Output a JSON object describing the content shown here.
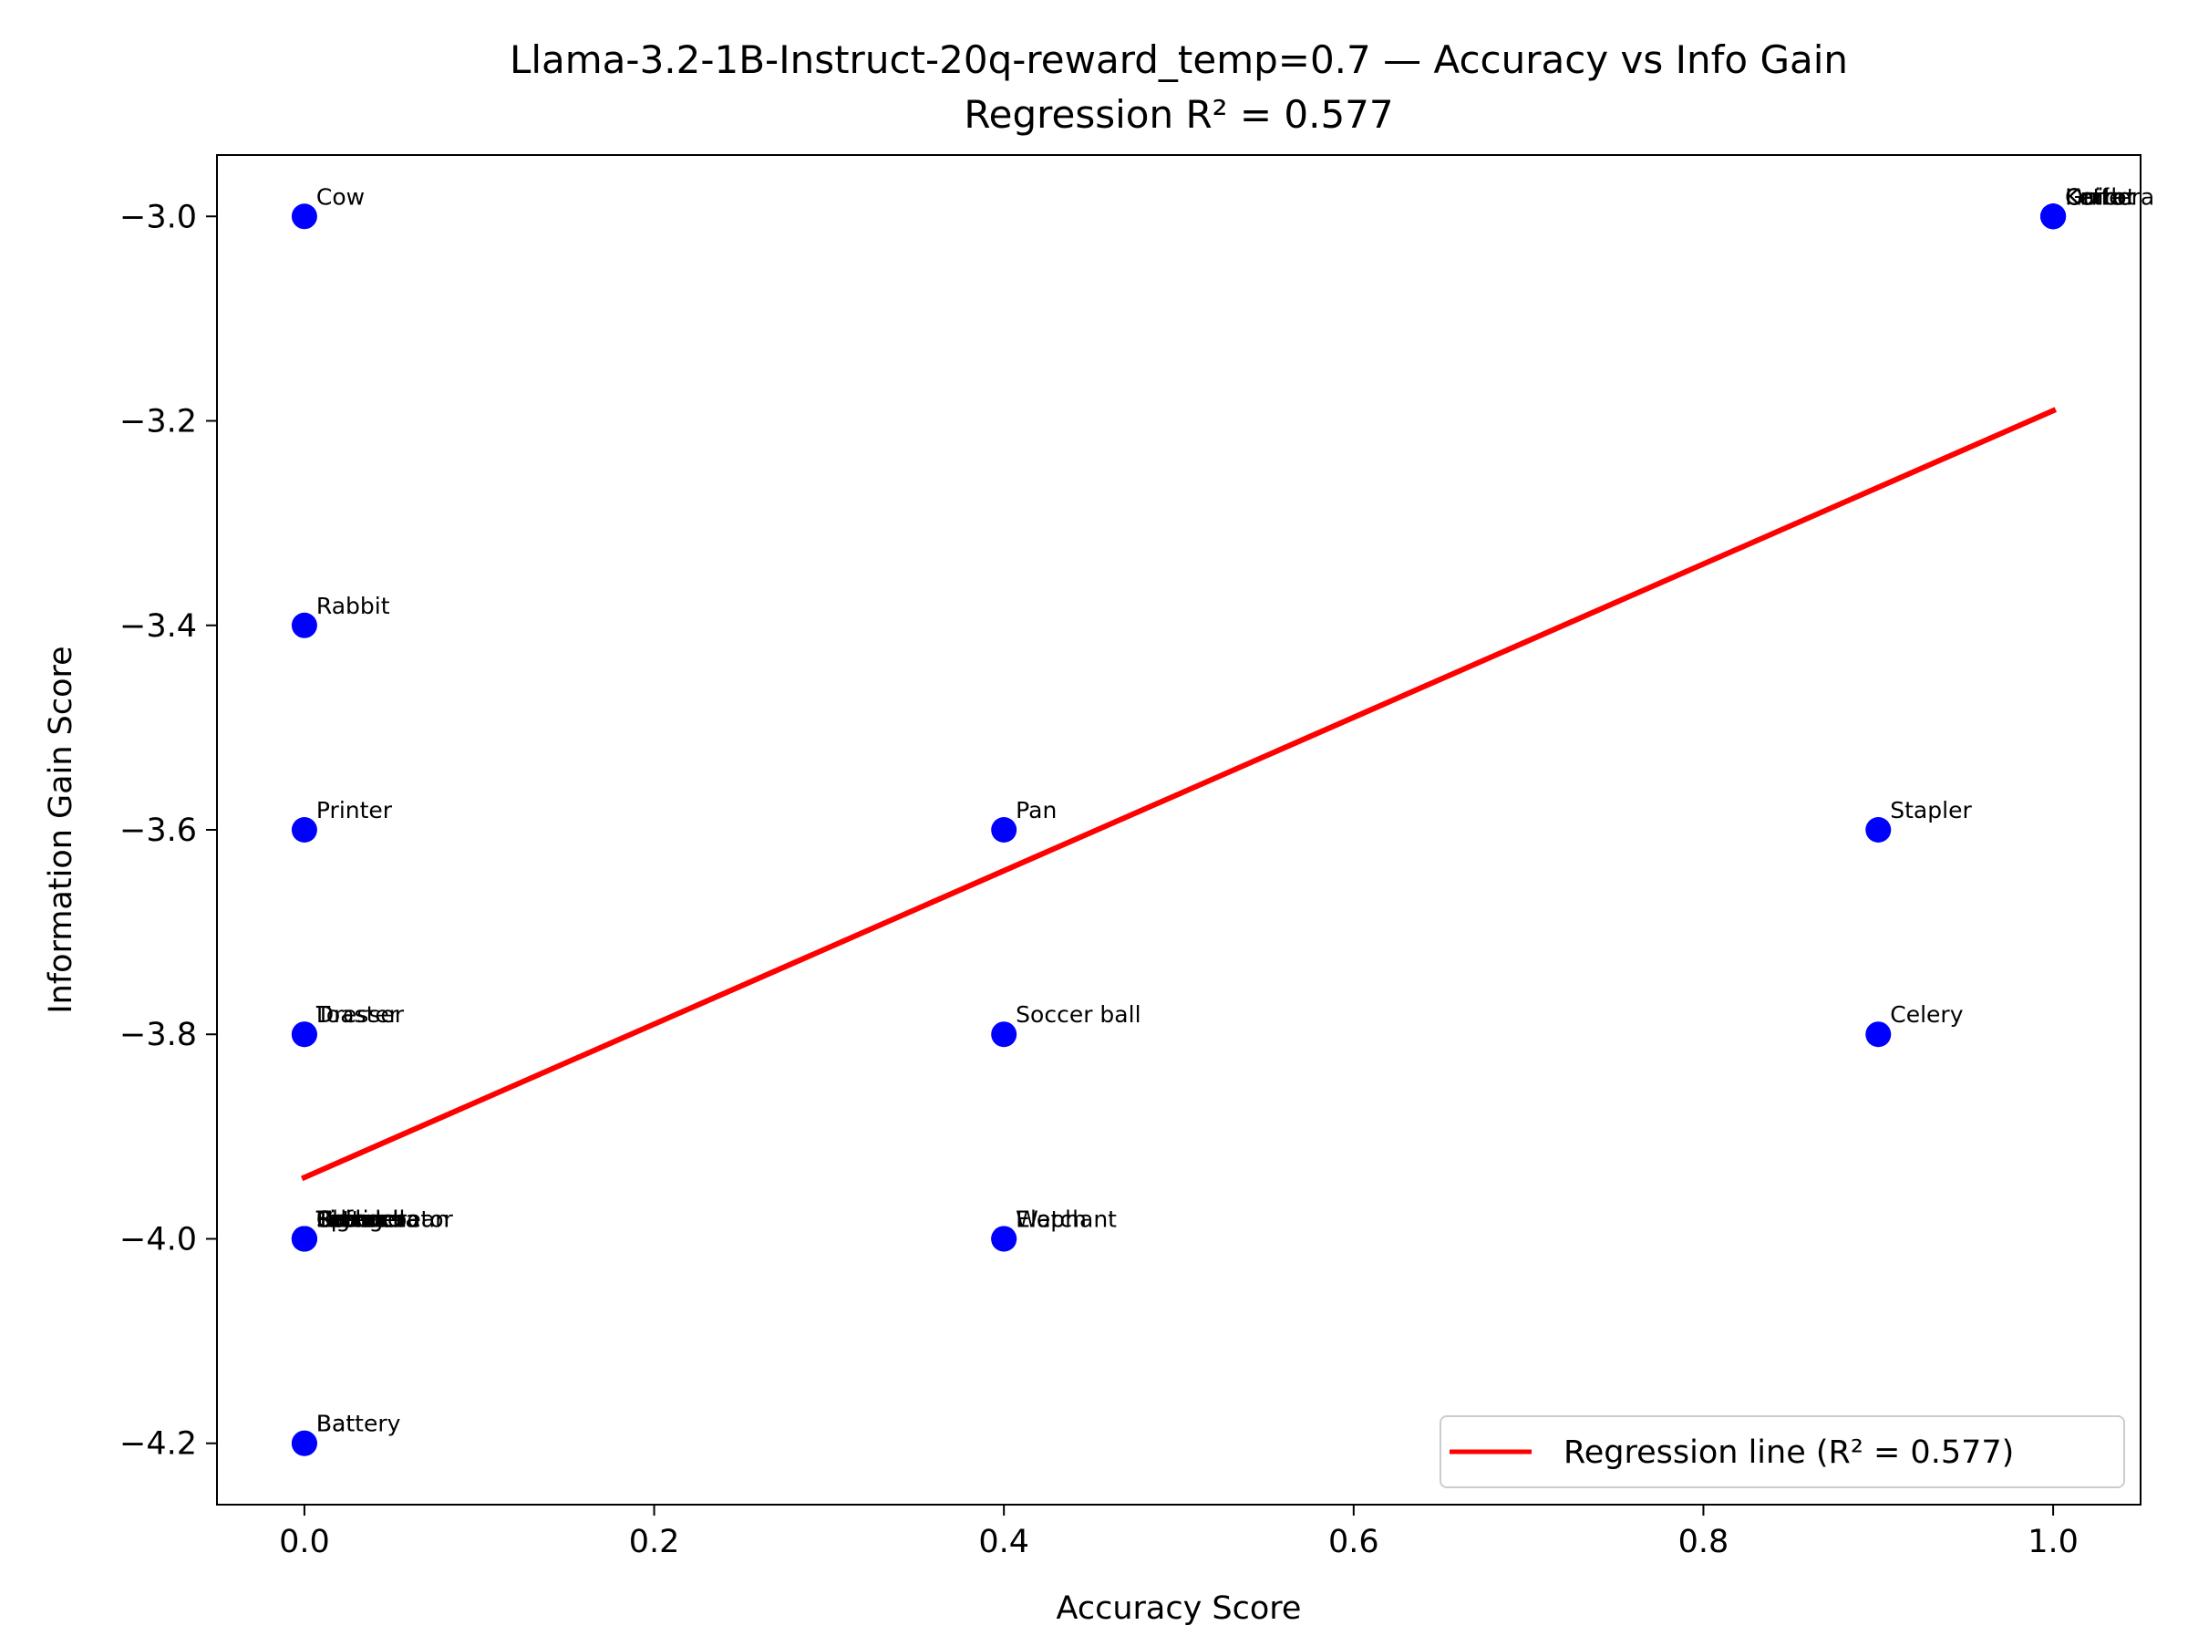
{
  "chart_data": {
    "type": "scatter",
    "title": "Llama-3.2-1B-Instruct-20q-reward_temp=0.7 — Accuracy vs Info Gain",
    "subtitle": "Regression R² = 0.577",
    "xlabel": "Accuracy Score",
    "ylabel": "Information Gain Score",
    "xlim": [
      -0.05,
      1.05
    ],
    "ylim": [
      -4.26,
      -2.94
    ],
    "x_ticks": [
      0.0,
      0.2,
      0.4,
      0.6,
      0.8,
      1.0
    ],
    "x_tick_labels": [
      "0.0",
      "0.2",
      "0.4",
      "0.6",
      "0.8",
      "1.0"
    ],
    "y_ticks": [
      -3.0,
      -3.2,
      -3.4,
      -3.6,
      -3.8,
      -4.0,
      -4.2
    ],
    "y_tick_labels": [
      "−3.0",
      "−3.2",
      "−3.4",
      "−3.6",
      "−3.8",
      "−4.0",
      "−4.2"
    ],
    "grid": false,
    "legend_position": "bottom-right",
    "point_color": "#0000ff",
    "line_color": "#ff0000",
    "points": [
      {
        "x": 0.0,
        "y": -3.0,
        "label": "Cow"
      },
      {
        "x": 0.0,
        "y": -3.4,
        "label": "Rabbit"
      },
      {
        "x": 0.0,
        "y": -3.6,
        "label": "Printer"
      },
      {
        "x": 0.0,
        "y": -3.8,
        "label": "Toaster"
      },
      {
        "x": 0.0,
        "y": -3.8,
        "label": "Dresser"
      },
      {
        "x": 0.0,
        "y": -4.0,
        "label": "Spinach"
      },
      {
        "x": 0.0,
        "y": -4.0,
        "label": "Blender"
      },
      {
        "x": 0.0,
        "y": -4.0,
        "label": "Umbrella"
      },
      {
        "x": 0.0,
        "y": -4.0,
        "label": "Tablet"
      },
      {
        "x": 0.0,
        "y": -4.0,
        "label": "Refrigerator"
      },
      {
        "x": 0.0,
        "y": -4.0,
        "label": "Lettuce"
      },
      {
        "x": 0.0,
        "y": -4.0,
        "label": "Tiger"
      },
      {
        "x": 0.0,
        "y": -4.0,
        "label": "Green bean"
      },
      {
        "x": 0.0,
        "y": -4.2,
        "label": "Bat"
      },
      {
        "x": 0.0,
        "y": -4.2,
        "label": "Battery"
      },
      {
        "x": 0.4,
        "y": -3.6,
        "label": "Pan"
      },
      {
        "x": 0.4,
        "y": -3.8,
        "label": "Soccer ball"
      },
      {
        "x": 0.4,
        "y": -4.0,
        "label": "Watch"
      },
      {
        "x": 0.4,
        "y": -4.0,
        "label": "Elephant"
      },
      {
        "x": 0.9,
        "y": -3.6,
        "label": "Stapler"
      },
      {
        "x": 0.9,
        "y": -3.8,
        "label": "Celery"
      },
      {
        "x": 1.0,
        "y": -3.0,
        "label": "Camera"
      },
      {
        "x": 1.0,
        "y": -3.0,
        "label": "Knife"
      },
      {
        "x": 1.0,
        "y": -3.0,
        "label": "Guitar"
      },
      {
        "x": 1.0,
        "y": -3.0,
        "label": "Onion"
      },
      {
        "x": 1.0,
        "y": -3.0,
        "label": "Carrot"
      },
      {
        "x": 1.0,
        "y": -3.0,
        "label": "Kettle"
      }
    ],
    "regression_line": {
      "name": "Regression line (R² = 0.577)",
      "x": [
        0.0,
        1.0
      ],
      "y": [
        -3.94,
        -3.19
      ]
    }
  }
}
